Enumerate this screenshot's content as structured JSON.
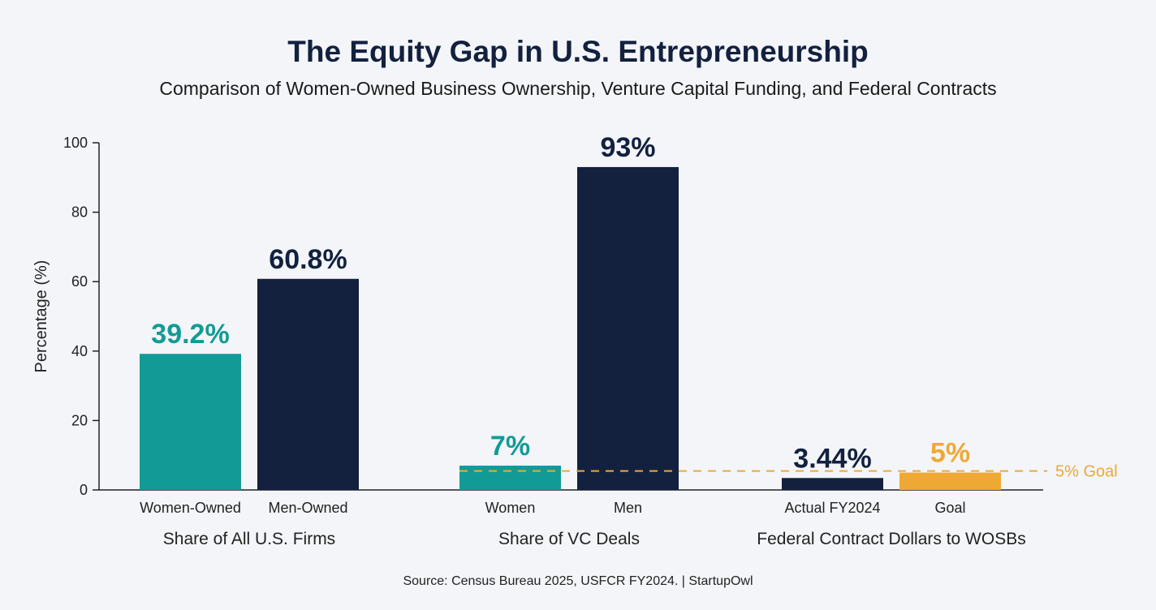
{
  "chart_data": {
    "type": "bar",
    "title": "The Equity Gap in U.S. Entrepreneurship",
    "subtitle": "Comparison of Women-Owned Business Ownership, Venture Capital Funding, and Federal Contracts",
    "ylabel": "Percentage (%)",
    "ylim": [
      0,
      100
    ],
    "yticks": [
      0,
      20,
      40,
      60,
      80,
      100
    ],
    "grid": false,
    "groups": [
      {
        "label": "Share of All U.S. Firms",
        "bars": [
          {
            "category": "Women-Owned",
            "value": 39.2,
            "label": "39.2%",
            "color": "#129b96"
          },
          {
            "category": "Men-Owned",
            "value": 60.8,
            "label": "60.8%",
            "color": "#13213f"
          }
        ]
      },
      {
        "label": "Share of VC Deals",
        "bars": [
          {
            "category": "Women",
            "value": 7,
            "label": "7%",
            "color": "#129b96"
          },
          {
            "category": "Men",
            "value": 93,
            "label": "93%",
            "color": "#13213f"
          }
        ]
      },
      {
        "label": "Federal Contract Dollars to WOSBs",
        "bars": [
          {
            "category": "Actual FY2024",
            "value": 3.44,
            "label": "3.44%",
            "color": "#13213f"
          },
          {
            "category": "Goal",
            "value": 5,
            "label": "5%",
            "color": "#eea934"
          }
        ]
      }
    ],
    "reference_line": {
      "value": 5,
      "label": "5% Goal",
      "color": "#eea934",
      "style": "dashed"
    },
    "source": "Source: Census Bureau 2025, USFCR FY2024. | StartupOwl"
  }
}
